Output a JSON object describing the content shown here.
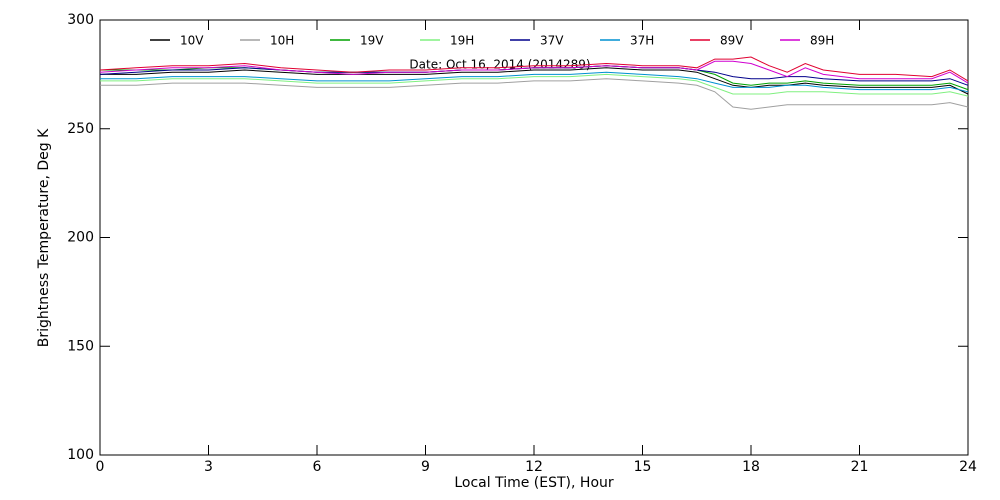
{
  "chart_data": {
    "type": "line",
    "annotation": "Date: Oct 16, 2014 (2014289)",
    "x_label": "Local Time (EST), Hour",
    "y_label": "Brightness Temperature, Deg K",
    "xlim": [
      0,
      24
    ],
    "ylim": [
      100,
      300
    ],
    "xticks": [
      0,
      3,
      6,
      9,
      12,
      15,
      18,
      21,
      24
    ],
    "yticks": [
      100,
      150,
      200,
      250,
      300
    ],
    "grid": false,
    "legend": "top",
    "x": [
      0,
      1,
      2,
      3,
      4,
      5,
      6,
      7,
      8,
      9,
      10,
      11,
      12,
      13,
      14,
      15,
      16,
      16.5,
      17,
      17.5,
      18,
      18.5,
      19,
      19.5,
      20,
      21,
      22,
      23,
      23.5,
      24
    ],
    "series": [
      {
        "name": "10V",
        "color": "#000000",
        "values": [
          275,
          275,
          276,
          276,
          277,
          276,
          275,
          275,
          275,
          275,
          276,
          276,
          277,
          277,
          278,
          277,
          277,
          276,
          273,
          270,
          269,
          270,
          270,
          271,
          270,
          269,
          269,
          269,
          270,
          266
        ]
      },
      {
        "name": "10H",
        "color": "#a0a0a0",
        "values": [
          270,
          270,
          271,
          271,
          271,
          270,
          269,
          269,
          269,
          270,
          271,
          271,
          272,
          272,
          273,
          272,
          271,
          270,
          267,
          260,
          259,
          260,
          261,
          261,
          261,
          261,
          261,
          261,
          262,
          260
        ]
      },
      {
        "name": "19V",
        "color": "#00a000",
        "values": [
          277,
          277,
          277,
          278,
          278,
          277,
          276,
          276,
          276,
          276,
          277,
          277,
          278,
          278,
          279,
          278,
          278,
          277,
          275,
          271,
          270,
          271,
          271,
          272,
          271,
          270,
          270,
          270,
          271,
          268
        ]
      },
      {
        "name": "19H",
        "color": "#80f080",
        "values": [
          272,
          272,
          273,
          273,
          273,
          272,
          271,
          271,
          271,
          272,
          273,
          273,
          274,
          274,
          275,
          274,
          273,
          272,
          269,
          266,
          266,
          266,
          267,
          267,
          267,
          266,
          266,
          266,
          267,
          265
        ]
      },
      {
        "name": "37V",
        "color": "#00008b",
        "values": [
          275,
          276,
          277,
          277,
          278,
          277,
          276,
          276,
          276,
          276,
          277,
          277,
          278,
          278,
          279,
          278,
          278,
          277,
          276,
          274,
          273,
          273,
          274,
          274,
          273,
          272,
          272,
          272,
          273,
          270
        ]
      },
      {
        "name": "37H",
        "color": "#0090d0",
        "values": [
          273,
          273,
          274,
          274,
          274,
          273,
          272,
          272,
          272,
          273,
          274,
          274,
          275,
          275,
          276,
          275,
          274,
          273,
          271,
          269,
          269,
          269,
          270,
          270,
          269,
          268,
          268,
          268,
          269,
          267
        ]
      },
      {
        "name": "89V",
        "color": "#e00030",
        "values": [
          277,
          278,
          279,
          279,
          280,
          278,
          277,
          276,
          277,
          277,
          278,
          278,
          279,
          279,
          280,
          279,
          279,
          278,
          282,
          282,
          283,
          279,
          276,
          280,
          277,
          275,
          275,
          274,
          277,
          272
        ]
      },
      {
        "name": "89H",
        "color": "#d000d0",
        "values": [
          276,
          277,
          278,
          278,
          279,
          277,
          276,
          275,
          276,
          276,
          277,
          277,
          278,
          278,
          279,
          278,
          278,
          277,
          281,
          281,
          280,
          277,
          274,
          278,
          275,
          273,
          273,
          273,
          276,
          271
        ]
      }
    ]
  }
}
